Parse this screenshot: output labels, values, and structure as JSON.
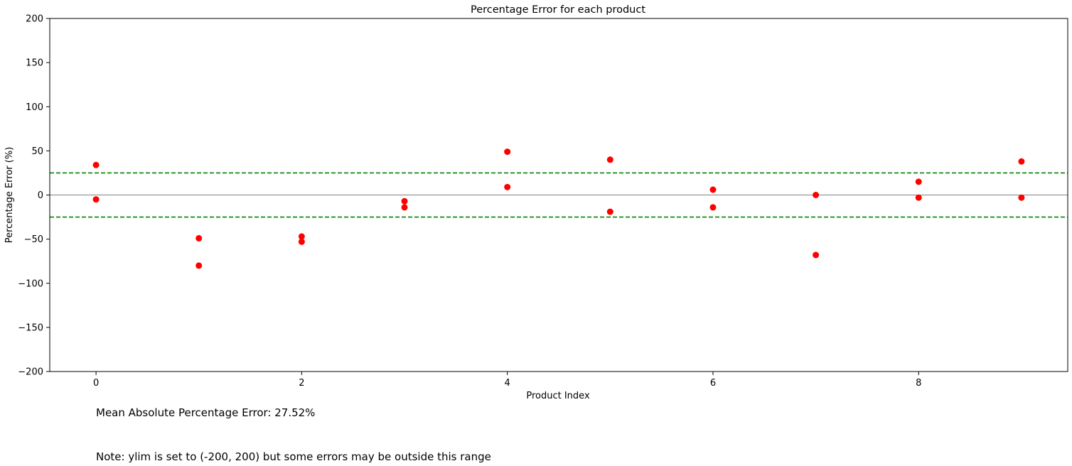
{
  "chart_data": {
    "type": "scatter",
    "title": "Percentage Error for each product",
    "xlabel": "Product Index",
    "ylabel": "Percentage Error (%)",
    "xlim": [
      -0.45,
      9.45
    ],
    "ylim": [
      -200,
      200
    ],
    "xticks": [
      0,
      2,
      4,
      6,
      8
    ],
    "xtick_labels": [
      "0",
      "2",
      "4",
      "6",
      "8"
    ],
    "yticks": [
      200,
      150,
      100,
      50,
      0,
      -50,
      -100,
      -150,
      -200
    ],
    "ytick_labels": [
      "200",
      "150",
      "100",
      "50",
      "0",
      "−50",
      "−100",
      "−150",
      "−200"
    ],
    "grid": false,
    "marker_color": "#ff0000",
    "series": [
      {
        "x": [
          0,
          0,
          1,
          1,
          2,
          2,
          3,
          3,
          4,
          4,
          5,
          5,
          6,
          6,
          7,
          7,
          8,
          8,
          9,
          9
        ],
        "y": [
          34,
          -5,
          -49,
          -80,
          -47,
          -53,
          -7,
          -14,
          49,
          9,
          40,
          -19,
          6,
          -14,
          0,
          -68,
          15,
          -3,
          38,
          -3
        ]
      }
    ],
    "reference_lines": [
      {
        "y": 0,
        "style": "solid",
        "color": "#808080"
      },
      {
        "y": 25,
        "style": "dashed",
        "color": "#008000"
      },
      {
        "y": -25,
        "style": "dashed",
        "color": "#008000"
      }
    ]
  },
  "annotations": {
    "mape": "Mean Absolute Percentage Error: 27.52%",
    "note": "Note: ylim is set to (-200, 200) but some errors may be outside this range"
  }
}
